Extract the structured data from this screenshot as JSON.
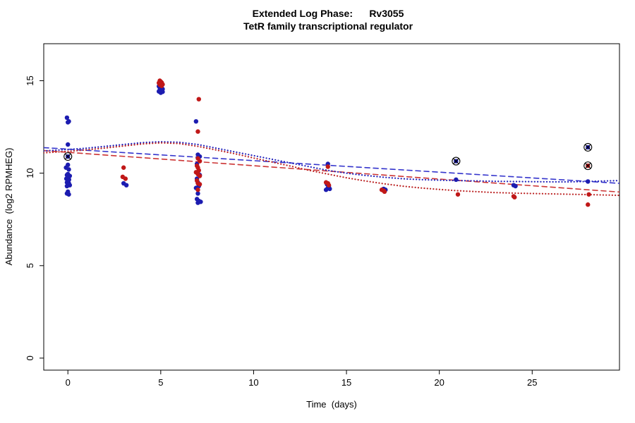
{
  "chart_data": {
    "type": "scatter",
    "title": "Extended Log Phase:      Rv3055",
    "subtitle": "TetR family transcriptional regulator",
    "xlabel": "Time  (days)",
    "ylabel": "Abundance  (log2 RPMHEG)",
    "xlim": [
      -1.3,
      29.7
    ],
    "ylim": [
      -0.65,
      17.0
    ],
    "xticks": [
      0,
      5,
      10,
      15,
      20,
      25
    ],
    "yticks": [
      0,
      5,
      10,
      15
    ],
    "grid": false,
    "legend": "none",
    "point_radius": 3.2,
    "series": [
      {
        "name": "condition-blue-points",
        "type": "points",
        "color": "#1C1CB0",
        "points": [
          [
            -0.05,
            13.0
          ],
          [
            0.05,
            12.8
          ],
          [
            0,
            12.75
          ],
          [
            0,
            11.55
          ],
          [
            0,
            10.9
          ],
          [
            0,
            10.45
          ],
          [
            -0.1,
            10.3
          ],
          [
            0.05,
            10.2
          ],
          [
            0,
            9.95
          ],
          [
            -0.05,
            9.9
          ],
          [
            0.1,
            9.85
          ],
          [
            0,
            9.8
          ],
          [
            -0.08,
            9.7
          ],
          [
            0.06,
            9.65
          ],
          [
            0,
            9.6
          ],
          [
            -0.05,
            9.5
          ],
          [
            0.05,
            9.45
          ],
          [
            0,
            9.4
          ],
          [
            0.1,
            9.35
          ],
          [
            -0.05,
            9.3
          ],
          [
            0,
            9.0
          ],
          [
            -0.05,
            8.9
          ],
          [
            0.05,
            8.85
          ],
          [
            3,
            9.45
          ],
          [
            3.15,
            9.35
          ],
          [
            4.9,
            14.7
          ],
          [
            4.95,
            14.62
          ],
          [
            5,
            14.68
          ],
          [
            5.05,
            14.6
          ],
          [
            5.1,
            14.55
          ],
          [
            4.95,
            14.5
          ],
          [
            5,
            14.45
          ],
          [
            5.05,
            14.5
          ],
          [
            4.9,
            14.42
          ],
          [
            5,
            14.35
          ],
          [
            5.1,
            14.4
          ],
          [
            6.9,
            12.8
          ],
          [
            7,
            11.0
          ],
          [
            7.1,
            10.9
          ],
          [
            6.95,
            10.5
          ],
          [
            7,
            10.0
          ],
          [
            7.1,
            9.9
          ],
          [
            6.95,
            9.7
          ],
          [
            7,
            9.5
          ],
          [
            7.05,
            9.3
          ],
          [
            6.9,
            9.2
          ],
          [
            7,
            8.9
          ],
          [
            6.95,
            8.6
          ],
          [
            7.05,
            8.5
          ],
          [
            7.15,
            8.45
          ],
          [
            7,
            8.4
          ],
          [
            14,
            10.5
          ],
          [
            13.95,
            9.4
          ],
          [
            14.05,
            9.3
          ],
          [
            14,
            9.2
          ],
          [
            14.1,
            9.15
          ],
          [
            13.9,
            9.1
          ],
          [
            17,
            9.15
          ],
          [
            17.1,
            9.1
          ],
          [
            20.9,
            10.65
          ],
          [
            20.9,
            9.65
          ],
          [
            24,
            9.35
          ],
          [
            24.1,
            9.3
          ],
          [
            28,
            11.4
          ],
          [
            28,
            9.55
          ]
        ]
      },
      {
        "name": "condition-red-points",
        "type": "points",
        "color": "#C01818",
        "points": [
          [
            3,
            10.3
          ],
          [
            2.95,
            9.8
          ],
          [
            3.1,
            9.7
          ],
          [
            4.95,
            15.0
          ],
          [
            5,
            14.95
          ],
          [
            5.05,
            14.9
          ],
          [
            4.9,
            14.88
          ],
          [
            5,
            14.85
          ],
          [
            5.1,
            14.8
          ],
          [
            4.95,
            14.78
          ],
          [
            5.05,
            14.72
          ],
          [
            7.05,
            14.0
          ],
          [
            7,
            12.25
          ],
          [
            7,
            10.8
          ],
          [
            7.1,
            10.65
          ],
          [
            6.95,
            10.4
          ],
          [
            7,
            10.3
          ],
          [
            7.05,
            10.15
          ],
          [
            6.9,
            10.05
          ],
          [
            7,
            9.95
          ],
          [
            7.1,
            9.85
          ],
          [
            6.95,
            9.6
          ],
          [
            7,
            9.45
          ],
          [
            7.1,
            9.4
          ],
          [
            7,
            9.1
          ],
          [
            14,
            10.35
          ],
          [
            13.9,
            9.5
          ],
          [
            14,
            9.45
          ],
          [
            14.05,
            9.35
          ],
          [
            16.9,
            9.1
          ],
          [
            17,
            9.05
          ],
          [
            17.05,
            9.0
          ],
          [
            21,
            8.85
          ],
          [
            24,
            8.75
          ],
          [
            24.05,
            8.7
          ],
          [
            28,
            10.4
          ],
          [
            28.05,
            8.85
          ],
          [
            28,
            8.3
          ]
        ]
      },
      {
        "name": "blue-linear-fit",
        "type": "line",
        "style": "dashed",
        "color": "#3434CC",
        "points": [
          [
            -1.3,
            11.38
          ],
          [
            29.7,
            9.45
          ]
        ]
      },
      {
        "name": "red-linear-fit",
        "type": "line",
        "style": "dashed",
        "color": "#CC3434",
        "points": [
          [
            -1.3,
            11.22
          ],
          [
            29.7,
            8.98
          ]
        ]
      },
      {
        "name": "blue-smooth-fit",
        "type": "line",
        "style": "dotted",
        "color": "#2222BB",
        "points": [
          [
            -1.3,
            11.2
          ],
          [
            0,
            11.28
          ],
          [
            1,
            11.35
          ],
          [
            2,
            11.45
          ],
          [
            3,
            11.55
          ],
          [
            4,
            11.65
          ],
          [
            5,
            11.7
          ],
          [
            6,
            11.67
          ],
          [
            7,
            11.55
          ],
          [
            8,
            11.35
          ],
          [
            9,
            11.15
          ],
          [
            10,
            10.95
          ],
          [
            11,
            10.75
          ],
          [
            12,
            10.55
          ],
          [
            13,
            10.35
          ],
          [
            14,
            10.15
          ],
          [
            15,
            10.0
          ],
          [
            16,
            9.88
          ],
          [
            17,
            9.78
          ],
          [
            18,
            9.7
          ],
          [
            19,
            9.65
          ],
          [
            20,
            9.62
          ],
          [
            21,
            9.6
          ],
          [
            22,
            9.58
          ],
          [
            23,
            9.56
          ],
          [
            24,
            9.55
          ],
          [
            25,
            9.54
          ],
          [
            26,
            9.53
          ],
          [
            27,
            9.53
          ],
          [
            28,
            9.55
          ],
          [
            29.7,
            9.6
          ]
        ]
      },
      {
        "name": "red-smooth-fit",
        "type": "line",
        "style": "dotted",
        "color": "#BB2222",
        "points": [
          [
            -1.3,
            11.1
          ],
          [
            0,
            11.18
          ],
          [
            1,
            11.26
          ],
          [
            2,
            11.36
          ],
          [
            3,
            11.47
          ],
          [
            4,
            11.58
          ],
          [
            5,
            11.64
          ],
          [
            6,
            11.6
          ],
          [
            7,
            11.45
          ],
          [
            8,
            11.25
          ],
          [
            9,
            11.05
          ],
          [
            10,
            10.82
          ],
          [
            11,
            10.6
          ],
          [
            12,
            10.38
          ],
          [
            13,
            10.15
          ],
          [
            14,
            9.95
          ],
          [
            15,
            9.75
          ],
          [
            16,
            9.58
          ],
          [
            17,
            9.43
          ],
          [
            18,
            9.3
          ],
          [
            19,
            9.2
          ],
          [
            20,
            9.12
          ],
          [
            21,
            9.05
          ],
          [
            22,
            9.0
          ],
          [
            23,
            8.95
          ],
          [
            24,
            8.92
          ],
          [
            25,
            8.9
          ],
          [
            26,
            8.88
          ],
          [
            27,
            8.86
          ],
          [
            28,
            8.84
          ],
          [
            29.7,
            8.8
          ]
        ]
      },
      {
        "name": "flagged-outlier-markers",
        "type": "marker-circle-x",
        "color": "#000000",
        "points": [
          [
            0,
            10.9
          ],
          [
            20.9,
            10.65
          ],
          [
            28,
            11.4
          ],
          [
            28,
            10.4
          ]
        ]
      }
    ]
  }
}
